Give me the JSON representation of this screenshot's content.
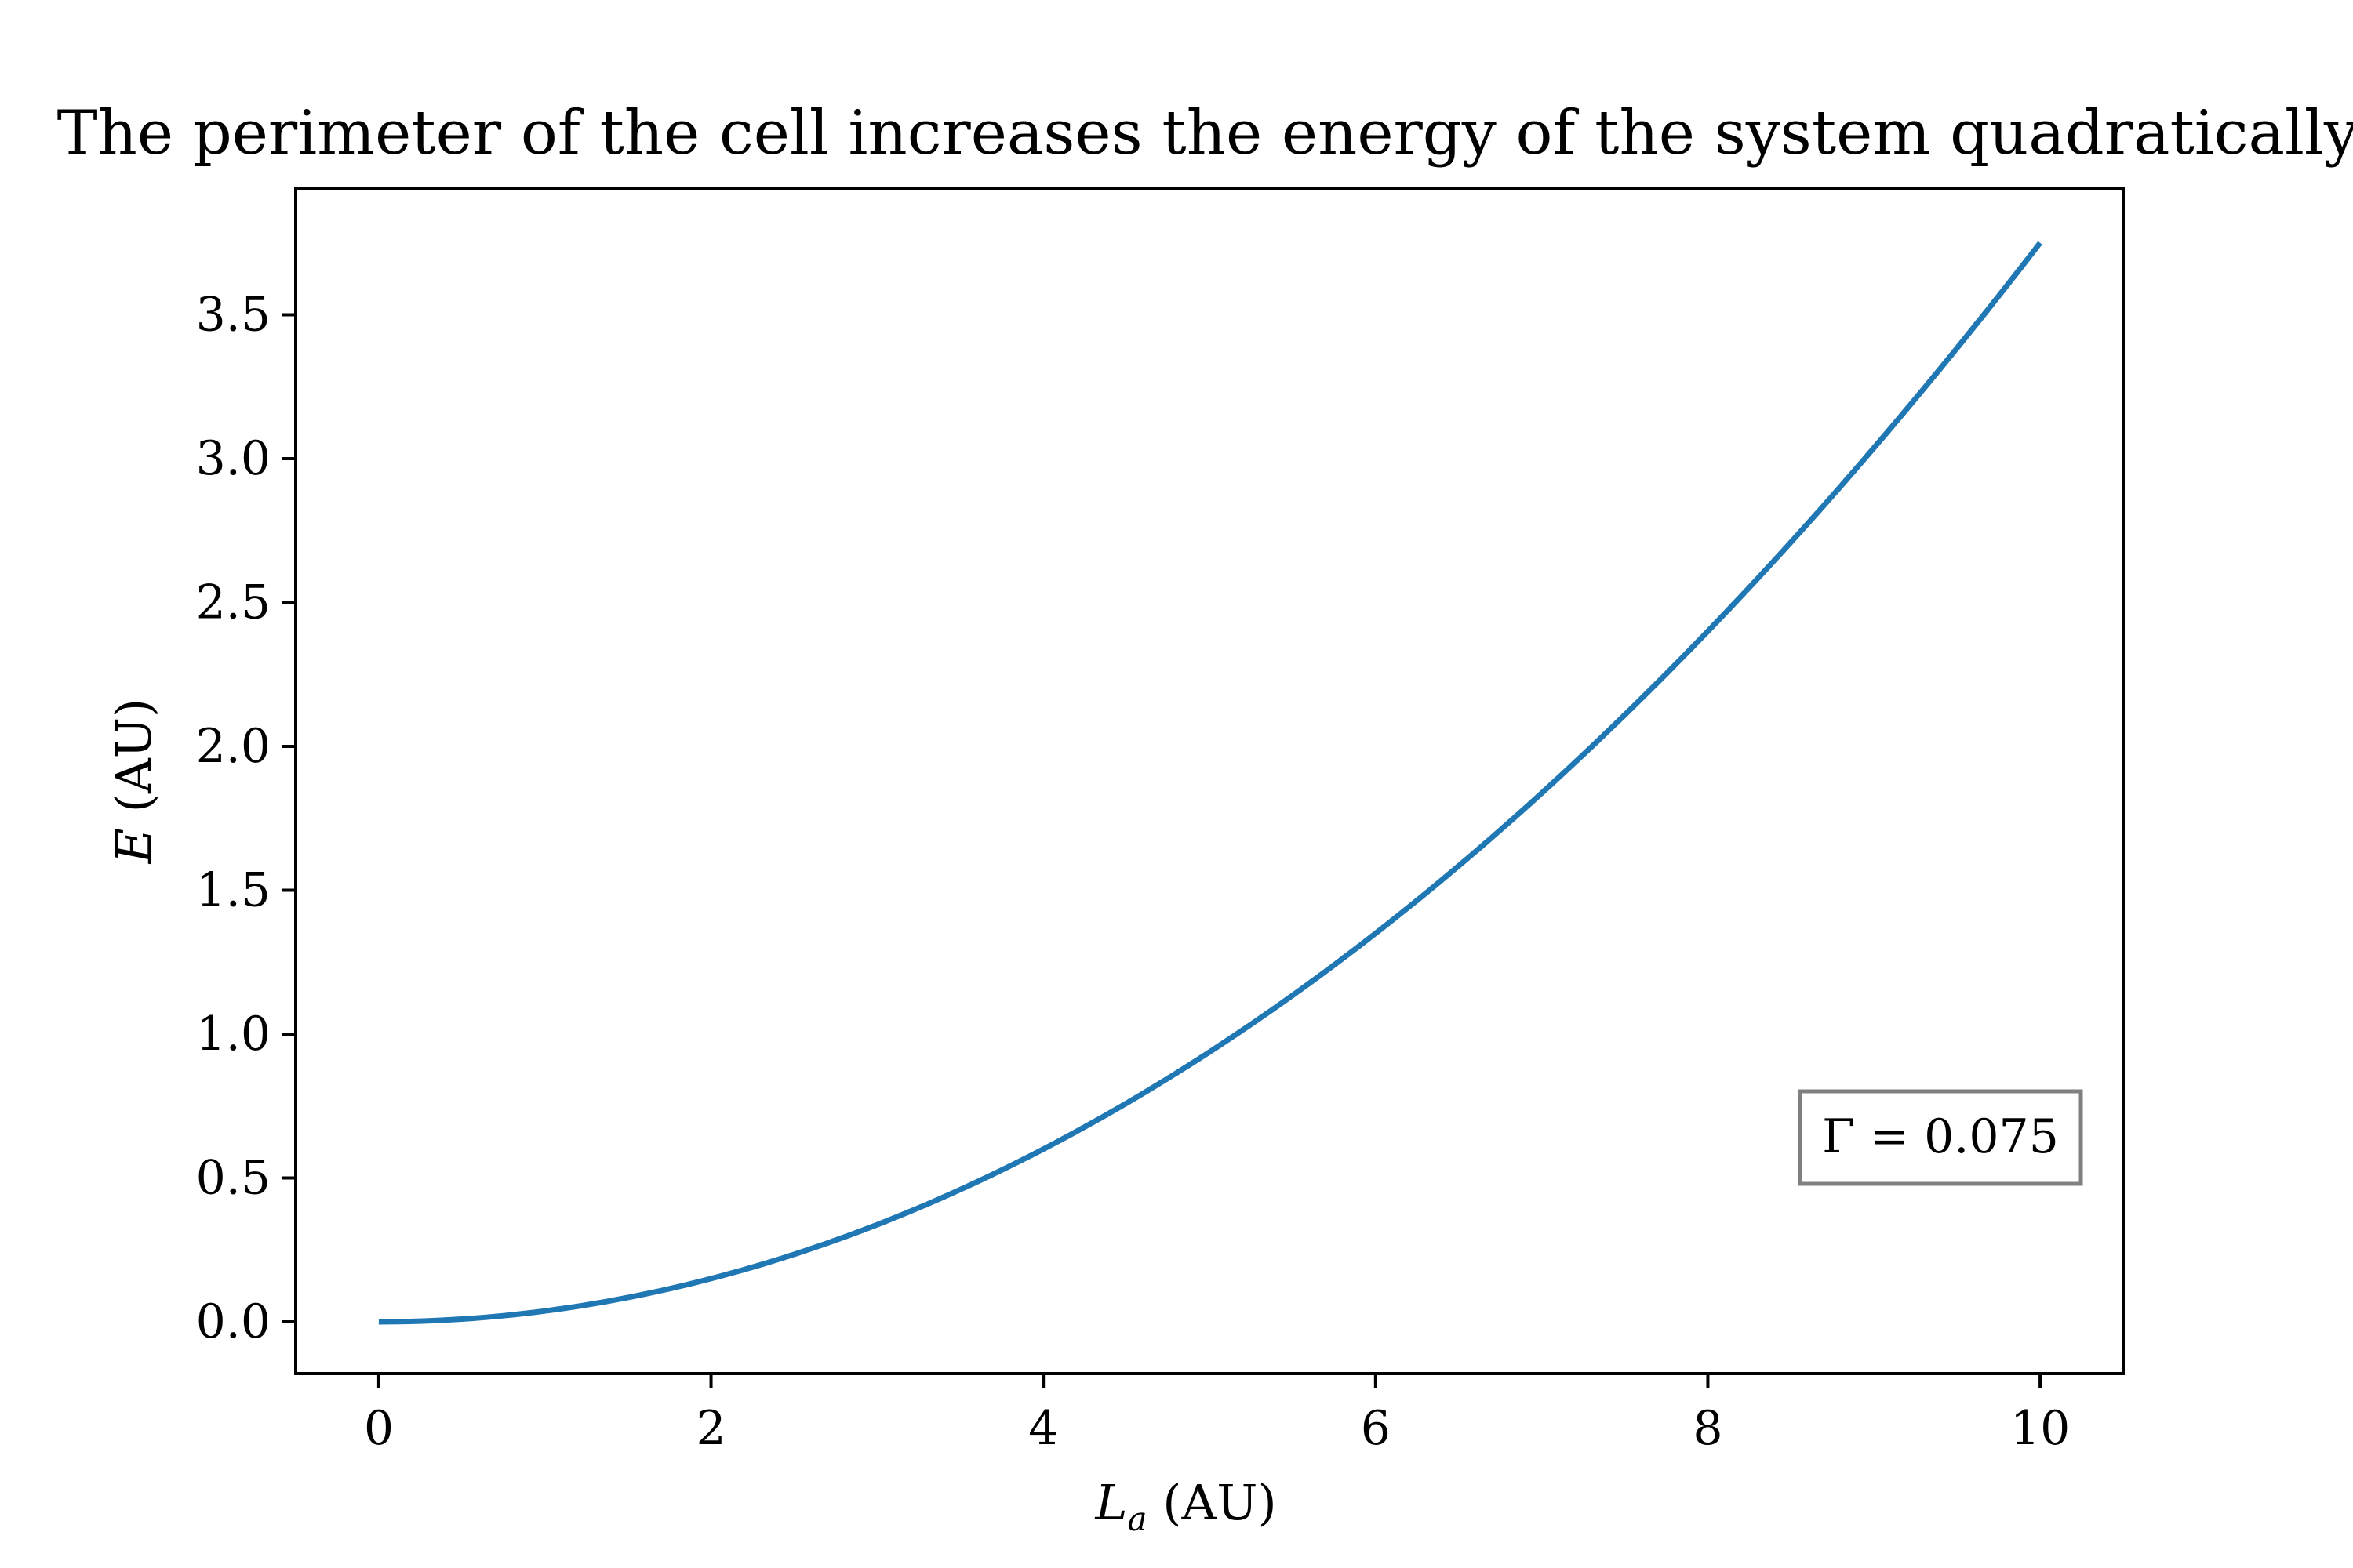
{
  "chart_data": {
    "type": "line",
    "title": "The perimeter of the cell increases the energy of the system quadratically.",
    "xlabel": "L_a (AU)",
    "xlabel_main": "L",
    "xlabel_sub": "a",
    "xlabel_unit": " (AU)",
    "ylabel": "E (AU)",
    "ylabel_main": "E",
    "ylabel_unit": " (AU)",
    "xlim": [
      -0.5,
      10.5
    ],
    "ylim": [
      -0.18,
      3.94
    ],
    "xticks": [
      0,
      2,
      4,
      6,
      8,
      10
    ],
    "xtick_labels": [
      "0",
      "2",
      "4",
      "6",
      "8",
      "10"
    ],
    "yticks": [
      0.0,
      0.5,
      1.0,
      1.5,
      2.0,
      2.5,
      3.0,
      3.5
    ],
    "ytick_labels": [
      "0.0",
      "0.5",
      "1.0",
      "1.5",
      "2.0",
      "2.5",
      "3.0",
      "3.5"
    ],
    "grid": false,
    "series": [
      {
        "color": "#1f77b4",
        "x": [
          0,
          0.5,
          1,
          1.5,
          2,
          2.5,
          3,
          3.5,
          4,
          4.5,
          5,
          5.5,
          6,
          6.5,
          7,
          7.5,
          8,
          8.5,
          9,
          9.5,
          10
        ],
        "y": [
          0.0,
          0.0094,
          0.0375,
          0.0844,
          0.15,
          0.2344,
          0.3375,
          0.4594,
          0.6,
          0.7594,
          0.9375,
          1.1344,
          1.35,
          1.5844,
          1.8375,
          2.1094,
          2.4,
          2.7094,
          3.0375,
          3.3844,
          3.75
        ]
      }
    ],
    "annotation": {
      "text": "Γ = 0.075",
      "placement": "lower-right",
      "border_color": "#808080"
    }
  }
}
